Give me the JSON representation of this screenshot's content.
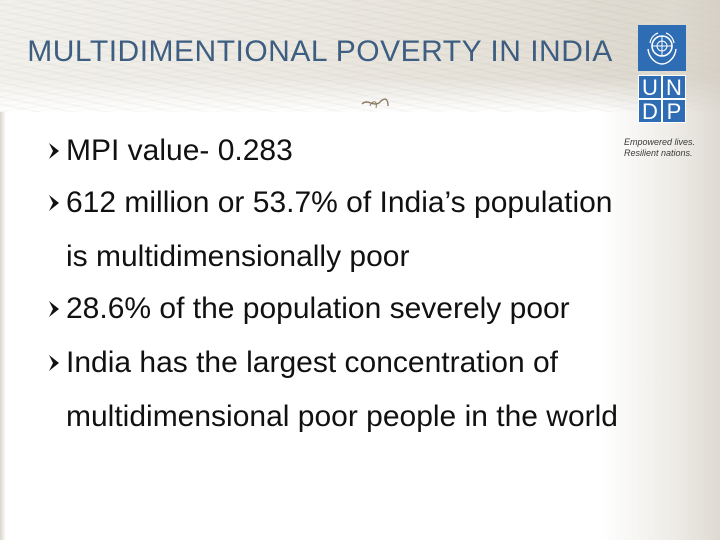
{
  "slide": {
    "title": "MULTIDIMENTIONAL POVERTY IN INDIA",
    "logo": {
      "letters": [
        "U",
        "N",
        "D",
        "P"
      ],
      "tagline_line1": "Empowered lives.",
      "tagline_line2": "Resilient nations."
    },
    "bullets": [
      {
        "line1": "MPI value- 0.283",
        "line2": ""
      },
      {
        "line1": "612 million or 53.7% of India’s population",
        "line2": "is multidimensionally poor"
      },
      {
        "line1": "28.6% of the population severely poor",
        "line2": ""
      },
      {
        "line1": "India has the largest concentration of",
        "line2": "multidimensional poor people in the world"
      }
    ],
    "colors": {
      "title": "#3d5e80",
      "undp_blue": "#2e6db4",
      "text": "#111111"
    }
  }
}
